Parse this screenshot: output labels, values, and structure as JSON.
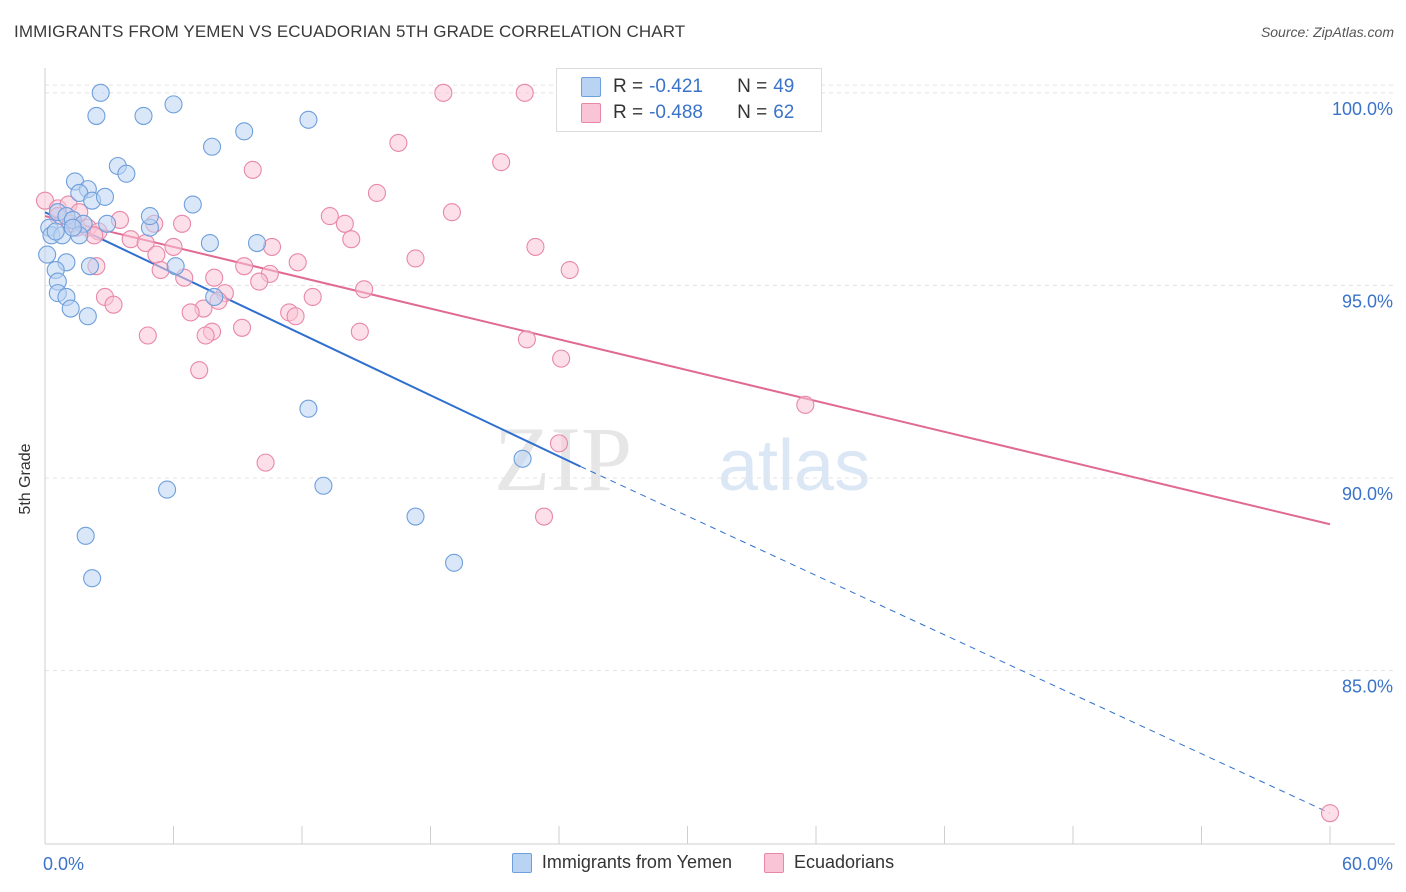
{
  "header": {
    "title": "IMMIGRANTS FROM YEMEN VS ECUADORIAN 5TH GRADE CORRELATION CHART",
    "source": "Source: ZipAtlas.com"
  },
  "watermark": {
    "zip": "ZIP",
    "atlas": "atlas"
  },
  "colors": {
    "blue_fill": "#b9d3f3",
    "blue_stroke": "#6f9fdc",
    "blue_line": "#2f6fce",
    "pink_fill": "#f9c4d6",
    "pink_stroke": "#e888a8",
    "pink_line": "#e06a93",
    "tick_label": "#3a73c8",
    "grid": "#e3e3e3"
  },
  "legend_top": {
    "rows": [
      {
        "r_label": "R =",
        "r_value": "-0.421",
        "n_label": "N =",
        "n_value": "49"
      },
      {
        "r_label": "R =",
        "r_value": "-0.488",
        "n_label": "N =",
        "n_value": "62"
      }
    ]
  },
  "chart_data": {
    "type": "scatter",
    "title": "IMMIGRANTS FROM YEMEN VS ECUADORIAN 5TH GRADE CORRELATION CHART",
    "xlabel": "",
    "ylabel": "5th Grade",
    "xlim": [
      0,
      60
    ],
    "ylim": [
      80.5,
      100.8
    ],
    "x_tick_labels": [
      "0.0%",
      "60.0%"
    ],
    "y_ticks": [
      85,
      90,
      95,
      100
    ],
    "y_tick_labels": [
      "85.0%",
      "90.0%",
      "95.0%",
      "100.0%"
    ],
    "grid": true,
    "legend_position": "bottom",
    "series": [
      {
        "name": "Immigrants from Yemen",
        "r": -0.421,
        "n": 49,
        "trend": {
          "x0": 0,
          "y0": 96.9,
          "x1": 25,
          "y1": 90.3,
          "dashed_to_x": 60,
          "dashed_to_y": 81.3
        },
        "points": [
          [
            2.6,
            100.0
          ],
          [
            2.4,
            99.4
          ],
          [
            4.6,
            99.4
          ],
          [
            6.0,
            99.7
          ],
          [
            12.3,
            99.3
          ],
          [
            7.8,
            98.6
          ],
          [
            9.3,
            99.0
          ],
          [
            3.4,
            98.1
          ],
          [
            3.8,
            97.9
          ],
          [
            1.4,
            97.7
          ],
          [
            2.0,
            97.5
          ],
          [
            1.6,
            97.4
          ],
          [
            2.2,
            97.2
          ],
          [
            2.8,
            97.3
          ],
          [
            6.9,
            97.1
          ],
          [
            0.2,
            96.5
          ],
          [
            0.6,
            96.9
          ],
          [
            1.0,
            96.8
          ],
          [
            1.3,
            96.7
          ],
          [
            1.8,
            96.6
          ],
          [
            2.9,
            96.6
          ],
          [
            4.9,
            96.5
          ],
          [
            4.9,
            96.8
          ],
          [
            0.3,
            96.3
          ],
          [
            0.8,
            96.3
          ],
          [
            1.6,
            96.3
          ],
          [
            7.7,
            96.1
          ],
          [
            9.9,
            96.1
          ],
          [
            0.1,
            95.8
          ],
          [
            1.0,
            95.6
          ],
          [
            2.1,
            95.5
          ],
          [
            6.1,
            95.5
          ],
          [
            0.5,
            95.4
          ],
          [
            0.6,
            95.1
          ],
          [
            0.6,
            94.8
          ],
          [
            1.0,
            94.7
          ],
          [
            1.2,
            94.4
          ],
          [
            2.0,
            94.2
          ],
          [
            7.9,
            94.7
          ],
          [
            12.3,
            91.8
          ],
          [
            22.3,
            90.5
          ],
          [
            5.7,
            89.7
          ],
          [
            13.0,
            89.8
          ],
          [
            17.3,
            89.0
          ],
          [
            1.9,
            88.5
          ],
          [
            19.1,
            87.8
          ],
          [
            2.2,
            87.4
          ],
          [
            0.5,
            96.4
          ],
          [
            1.3,
            96.5
          ]
        ]
      },
      {
        "name": "Ecuadorians",
        "r": -0.488,
        "n": 62,
        "trend": {
          "x0": 0,
          "y0": 96.8,
          "x1": 60,
          "y1": 88.8
        },
        "points": [
          [
            18.6,
            100.0
          ],
          [
            22.4,
            100.0
          ],
          [
            16.5,
            98.7
          ],
          [
            21.3,
            98.2
          ],
          [
            9.7,
            98.0
          ],
          [
            15.5,
            97.4
          ],
          [
            0.0,
            97.2
          ],
          [
            0.6,
            97.0
          ],
          [
            1.1,
            97.1
          ],
          [
            1.6,
            96.9
          ],
          [
            19.0,
            96.9
          ],
          [
            13.3,
            96.8
          ],
          [
            14.0,
            96.6
          ],
          [
            3.5,
            96.7
          ],
          [
            5.1,
            96.6
          ],
          [
            6.4,
            96.6
          ],
          [
            1.5,
            96.5
          ],
          [
            2.0,
            96.5
          ],
          [
            2.5,
            96.4
          ],
          [
            4.0,
            96.2
          ],
          [
            4.7,
            96.1
          ],
          [
            6.0,
            96.0
          ],
          [
            10.6,
            96.0
          ],
          [
            14.3,
            96.2
          ],
          [
            22.9,
            96.0
          ],
          [
            5.2,
            95.8
          ],
          [
            11.8,
            95.6
          ],
          [
            17.3,
            95.7
          ],
          [
            9.3,
            95.5
          ],
          [
            2.4,
            95.5
          ],
          [
            5.4,
            95.4
          ],
          [
            10.5,
            95.3
          ],
          [
            24.5,
            95.4
          ],
          [
            6.5,
            95.2
          ],
          [
            7.9,
            95.2
          ],
          [
            10.0,
            95.1
          ],
          [
            14.9,
            94.9
          ],
          [
            2.8,
            94.7
          ],
          [
            8.4,
            94.8
          ],
          [
            12.5,
            94.7
          ],
          [
            8.1,
            94.6
          ],
          [
            3.2,
            94.5
          ],
          [
            7.4,
            94.4
          ],
          [
            11.4,
            94.3
          ],
          [
            6.8,
            94.3
          ],
          [
            11.7,
            94.2
          ],
          [
            9.2,
            93.9
          ],
          [
            7.8,
            93.8
          ],
          [
            7.5,
            93.7
          ],
          [
            14.7,
            93.8
          ],
          [
            4.8,
            93.7
          ],
          [
            22.5,
            93.6
          ],
          [
            24.1,
            93.1
          ],
          [
            7.2,
            92.8
          ],
          [
            35.5,
            91.9
          ],
          [
            10.3,
            90.4
          ],
          [
            24.0,
            90.9
          ],
          [
            23.3,
            89.0
          ],
          [
            60.0,
            81.3
          ],
          [
            0.6,
            96.8
          ],
          [
            1.2,
            96.6
          ],
          [
            2.3,
            96.3
          ]
        ]
      }
    ]
  },
  "legend_bottom": {
    "items": [
      {
        "label": "Immigrants from Yemen"
      },
      {
        "label": "Ecuadorians"
      }
    ]
  }
}
